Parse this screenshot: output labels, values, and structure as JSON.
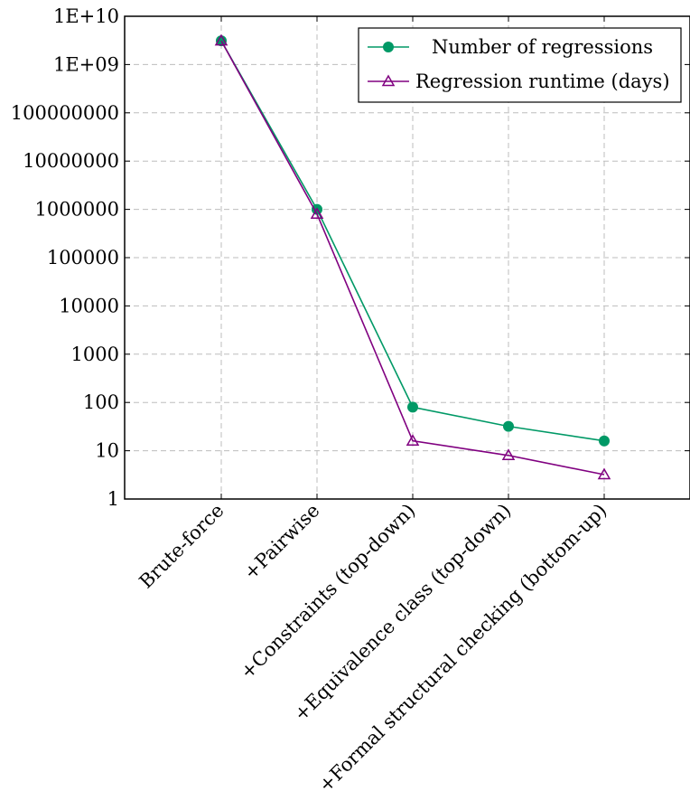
{
  "chart_data": {
    "type": "line",
    "y_scale": "log",
    "ylim": [
      1,
      10000000000
    ],
    "grid": true,
    "legend_position": "top-right",
    "categories": [
      "Brute-force",
      "+Pairwise",
      "+Constraints (top-down)",
      "+Equivalence class (top-down)",
      "+Formal structural checking (bottom-up)"
    ],
    "y_tick_values": [
      1,
      10,
      100,
      1000,
      10000,
      100000,
      1000000,
      10000000,
      100000000,
      1000000000,
      10000000000
    ],
    "y_tick_labels": [
      "1",
      "10",
      "100",
      "1000",
      "10000",
      "100000",
      "1000000",
      "10000000",
      "100000000",
      "1E+09",
      "1E+10"
    ],
    "series": [
      {
        "name": "Number of regressions",
        "color": "#009966",
        "marker": "circle",
        "values": [
          3100000000,
          1000000,
          80,
          32,
          16
        ]
      },
      {
        "name": "Regression runtime (days)",
        "color": "#800080",
        "marker": "triangle",
        "values": [
          3100000000,
          800000,
          16,
          8,
          3.2
        ]
      }
    ]
  }
}
